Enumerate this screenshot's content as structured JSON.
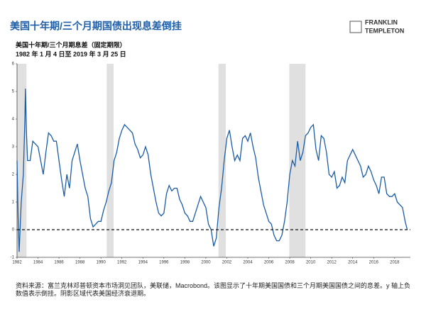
{
  "chart_data": {
    "type": "line",
    "title": "美国十年期/三个月期国债出现息差倒挂",
    "subtitle": "美国十年期/三个月期息差（固定期限）",
    "date_range": "1982 年 1 月 4 日至 2019 年 3 月 25 日",
    "source": "资料来源：富兰克林邓普顿资本市场洞见团队，美联储，Macrobond。该图显示了十年期美国国债和三个月期美国国债之间的息差。y 轴上负数值表示倒挂。阴影区域代表美国经济衰退期。",
    "logo": [
      "FRANKLIN",
      "TEMPLETON"
    ],
    "xlim": [
      1982,
      2019.5
    ],
    "ylim": [
      -1,
      6
    ],
    "xticks": [
      1982,
      1984,
      1986,
      1988,
      1990,
      1992,
      1994,
      1996,
      1998,
      2000,
      2002,
      2004,
      2006,
      2008,
      2010,
      2012,
      2014,
      2016,
      2018
    ],
    "yticks": [
      -1,
      0,
      1,
      2,
      3,
      4,
      5,
      6
    ],
    "grid": false,
    "reference_line": 0,
    "recession_color": "#e0e0e0",
    "recessions": [
      [
        1982,
        1982.9
      ],
      [
        1990.55,
        1991.2
      ],
      [
        2001.2,
        2001.9
      ],
      [
        2007.95,
        2009.5
      ]
    ],
    "x": [
      1982.0,
      1982.1,
      1982.2,
      1982.4,
      1982.6,
      1982.75,
      1982.8,
      1982.9,
      1983.0,
      1983.25,
      1983.5,
      1983.75,
      1984.0,
      1984.25,
      1984.5,
      1984.75,
      1985.0,
      1985.25,
      1985.5,
      1985.75,
      1986.0,
      1986.25,
      1986.5,
      1986.75,
      1987.0,
      1987.25,
      1987.5,
      1987.75,
      1988.0,
      1988.25,
      1988.5,
      1988.75,
      1989.0,
      1989.25,
      1989.5,
      1989.75,
      1990.0,
      1990.25,
      1990.5,
      1990.75,
      1991.0,
      1991.25,
      1991.5,
      1991.75,
      1992.0,
      1992.25,
      1992.5,
      1992.75,
      1993.0,
      1993.25,
      1993.5,
      1993.75,
      1994.0,
      1994.25,
      1994.5,
      1994.75,
      1995.0,
      1995.25,
      1995.5,
      1995.75,
      1996.0,
      1996.25,
      1996.5,
      1996.75,
      1997.0,
      1997.25,
      1997.5,
      1997.75,
      1998.0,
      1998.25,
      1998.5,
      1998.75,
      1999.0,
      1999.25,
      1999.5,
      1999.75,
      2000.0,
      2000.25,
      2000.5,
      2000.75,
      2001.0,
      2001.25,
      2001.5,
      2001.75,
      2002.0,
      2002.25,
      2002.5,
      2002.75,
      2003.0,
      2003.25,
      2003.5,
      2003.75,
      2004.0,
      2004.25,
      2004.5,
      2004.75,
      2005.0,
      2005.25,
      2005.5,
      2005.75,
      2006.0,
      2006.25,
      2006.5,
      2006.75,
      2007.0,
      2007.25,
      2007.5,
      2007.75,
      2008.0,
      2008.25,
      2008.5,
      2008.75,
      2009.0,
      2009.25,
      2009.5,
      2009.75,
      2010.0,
      2010.25,
      2010.5,
      2010.75,
      2011.0,
      2011.25,
      2011.5,
      2011.75,
      2012.0,
      2012.25,
      2012.5,
      2012.75,
      2013.0,
      2013.25,
      2013.5,
      2013.75,
      2014.0,
      2014.25,
      2014.5,
      2014.75,
      2015.0,
      2015.25,
      2015.5,
      2015.75,
      2016.0,
      2016.25,
      2016.5,
      2016.75,
      2017.0,
      2017.25,
      2017.5,
      2017.75,
      2018.0,
      2018.25,
      2018.5,
      2018.75,
      2019.0,
      2019.2
    ],
    "series": [
      {
        "color": "#1a5da6",
        "values": [
          2.5,
          0.5,
          -0.8,
          1.0,
          2.0,
          4.0,
          5.1,
          3.5,
          2.5,
          2.5,
          3.2,
          3.1,
          3.0,
          2.5,
          2.0,
          2.8,
          3.5,
          3.4,
          3.2,
          3.2,
          2.5,
          1.8,
          1.2,
          2.0,
          1.5,
          2.5,
          2.8,
          3.1,
          2.5,
          2.0,
          1.5,
          1.2,
          0.4,
          0.1,
          0.2,
          0.3,
          0.3,
          0.7,
          1.0,
          1.4,
          1.7,
          2.5,
          2.8,
          3.3,
          3.6,
          3.8,
          3.7,
          3.6,
          3.5,
          3.1,
          2.9,
          2.6,
          2.7,
          3.0,
          2.7,
          2.0,
          1.5,
          1.0,
          0.6,
          0.5,
          0.6,
          1.3,
          1.6,
          1.4,
          1.5,
          1.5,
          1.1,
          0.9,
          0.6,
          0.5,
          0.3,
          0.3,
          0.6,
          0.9,
          1.2,
          1.0,
          0.8,
          0.2,
          0.0,
          -0.6,
          -0.3,
          0.8,
          1.5,
          2.5,
          3.3,
          3.6,
          3.0,
          2.5,
          2.7,
          2.5,
          3.3,
          3.4,
          3.2,
          3.5,
          3.0,
          2.6,
          1.9,
          1.4,
          0.9,
          0.6,
          0.3,
          0.2,
          -0.2,
          -0.4,
          -0.4,
          -0.2,
          0.3,
          1.0,
          2.0,
          2.5,
          2.3,
          3.2,
          2.5,
          2.8,
          3.4,
          3.5,
          3.7,
          3.8,
          2.9,
          2.5,
          3.4,
          3.3,
          2.8,
          2.0,
          1.9,
          2.1,
          1.5,
          1.6,
          1.9,
          1.7,
          2.5,
          2.7,
          2.9,
          2.7,
          2.5,
          2.3,
          1.9,
          2.0,
          2.3,
          2.1,
          1.8,
          1.6,
          1.3,
          1.9,
          1.9,
          1.3,
          1.2,
          1.2,
          1.3,
          1.0,
          0.9,
          0.8,
          0.3,
          0.0
        ]
      }
    ]
  }
}
